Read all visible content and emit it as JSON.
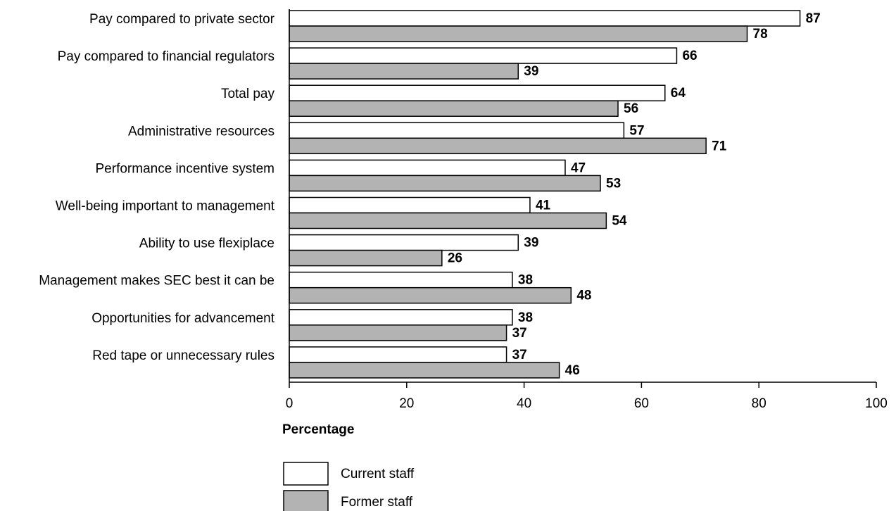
{
  "chart_data": {
    "type": "bar",
    "orientation": "horizontal",
    "categories": [
      "Pay compared to private sector",
      "Pay compared to financial regulators",
      "Total pay",
      "Administrative resources",
      "Performance incentive system",
      "Well-being important to management",
      "Ability to use flexiplace",
      "Management makes SEC best it can be",
      "Opportunities for advancement",
      "Red tape or unnecessary rules"
    ],
    "series": [
      {
        "name": "Current staff",
        "color": "#ffffff",
        "values": [
          87,
          66,
          64,
          57,
          47,
          41,
          39,
          38,
          38,
          37
        ]
      },
      {
        "name": "Former staff",
        "color": "#b3b3b3",
        "values": [
          78,
          39,
          56,
          71,
          53,
          54,
          26,
          48,
          37,
          46
        ]
      }
    ],
    "xlabel": "Percentage",
    "xlim": [
      0,
      100
    ],
    "xticks": [
      0,
      20,
      40,
      60,
      80,
      100
    ],
    "grid": false,
    "legend_position": "bottom-left"
  }
}
